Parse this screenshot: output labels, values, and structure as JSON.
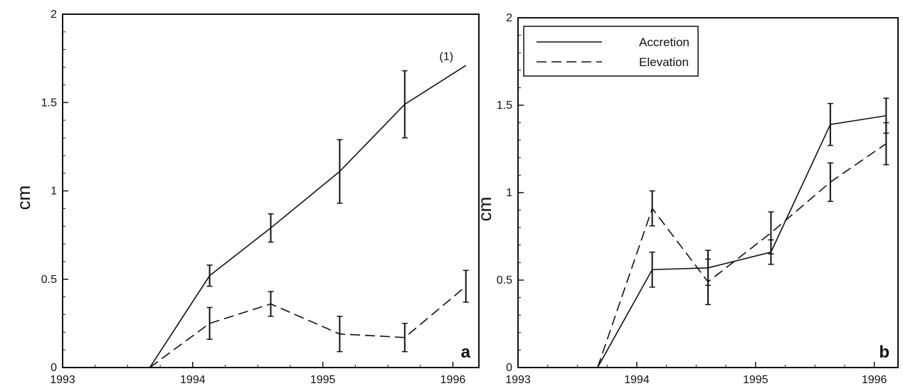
{
  "chart_data": [
    {
      "type": "line",
      "panel_label": "a",
      "ylabel": "cm",
      "xlabel": "",
      "xlim": [
        1993,
        1996.2
      ],
      "ylim": [
        0,
        2
      ],
      "x_ticks": [
        1993,
        1994,
        1995,
        1996
      ],
      "x_tick_labels": [
        "1993",
        "1994",
        "1995",
        "1996"
      ],
      "y_ticks": [
        0,
        0.5,
        1,
        1.5,
        2
      ],
      "y_tick_labels": [
        "0",
        "0.5",
        "1",
        "1.5",
        "2"
      ],
      "annotations": [
        {
          "text": "(1)",
          "x": 1995.95,
          "y": 1.74
        }
      ],
      "series": [
        {
          "style": "solid",
          "x": [
            1993.67,
            1994.13,
            1994.6,
            1995.13,
            1995.63,
            1996.1
          ],
          "y": [
            0,
            0.52,
            0.79,
            1.11,
            1.49,
            1.71
          ],
          "err": [
            null,
            0.06,
            0.08,
            0.18,
            0.19,
            null
          ]
        },
        {
          "style": "dashed",
          "x": [
            1993.67,
            1994.13,
            1994.6,
            1995.13,
            1995.63,
            1996.1
          ],
          "y": [
            0,
            0.25,
            0.36,
            0.19,
            0.17,
            0.46
          ],
          "err": [
            null,
            0.09,
            0.07,
            0.1,
            0.08,
            0.09
          ]
        }
      ]
    },
    {
      "type": "line",
      "panel_label": "b",
      "ylabel": "cm",
      "xlabel": "",
      "xlim": [
        1993,
        1996.2
      ],
      "ylim": [
        0,
        2
      ],
      "x_ticks": [
        1993,
        1994,
        1995,
        1996
      ],
      "x_tick_labels": [
        "1993",
        "1994",
        "1995",
        "1996"
      ],
      "y_ticks": [
        0,
        0.5,
        1,
        1.5,
        2
      ],
      "y_tick_labels": [
        "0",
        "0.5",
        "1",
        "1.5",
        "2"
      ],
      "legend": {
        "position": "top-left"
      },
      "series": [
        {
          "name": "Accretion",
          "style": "solid",
          "x": [
            1993.67,
            1994.13,
            1994.6,
            1995.13,
            1995.63,
            1996.1
          ],
          "y": [
            0,
            0.56,
            0.57,
            0.66,
            1.39,
            1.44
          ],
          "err": [
            null,
            0.1,
            0.1,
            0.07,
            0.12,
            0.1
          ]
        },
        {
          "name": "Elevation",
          "style": "dashed",
          "x": [
            1993.67,
            1994.13,
            1994.6,
            1995.13,
            1995.63,
            1996.1
          ],
          "y": [
            0,
            0.91,
            0.49,
            0.77,
            1.06,
            1.28
          ],
          "err": [
            null,
            0.1,
            0.13,
            0.12,
            0.11,
            0.12
          ]
        }
      ]
    }
  ]
}
